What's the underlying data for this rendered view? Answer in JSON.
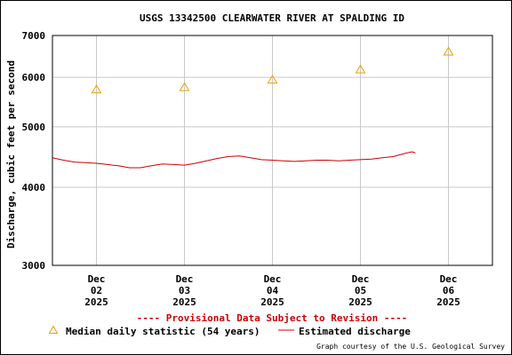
{
  "chart_data": {
    "type": "line",
    "title": "USGS 13342500 CLEARWATER RIVER AT SPALDING ID",
    "ylabel": "Discharge, cubic feet per second",
    "xlabel": "",
    "y_scale": "log",
    "ylim": [
      3000,
      7000
    ],
    "y_ticks": [
      3000,
      4000,
      5000,
      6000,
      7000
    ],
    "y_tick_labels": [
      "3000",
      "4000",
      "5000",
      "6000",
      "7000"
    ],
    "x_ticks": [
      {
        "date": "2025-12-02",
        "lines": [
          "Dec",
          "02",
          "2025"
        ]
      },
      {
        "date": "2025-12-03",
        "lines": [
          "Dec",
          "03",
          "2025"
        ]
      },
      {
        "date": "2025-12-04",
        "lines": [
          "Dec",
          "04",
          "2025"
        ]
      },
      {
        "date": "2025-12-05",
        "lines": [
          "Dec",
          "05",
          "2025"
        ]
      },
      {
        "date": "2025-12-06",
        "lines": [
          "Dec",
          "06",
          "2025"
        ]
      }
    ],
    "xlim": [
      "2025-12-01T12:00",
      "2025-12-06T12:00"
    ],
    "grid": true,
    "series": [
      {
        "name": "Median daily statistic (54 years)",
        "kind": "marker-triangle",
        "color": "#e6a000",
        "x": [
          "2025-12-02T00:00",
          "2025-12-03T00:00",
          "2025-12-04T00:00",
          "2025-12-05T00:00",
          "2025-12-06T00:00"
        ],
        "values": [
          5740,
          5790,
          5950,
          6180,
          6600
        ]
      },
      {
        "name": "Estimated discharge",
        "kind": "line",
        "color": "#cc0000",
        "x": [
          "2025-12-01T12:00",
          "2025-12-01T15:00",
          "2025-12-01T18:00",
          "2025-12-01T21:00",
          "2025-12-02T00:00",
          "2025-12-02T03:00",
          "2025-12-02T06:00",
          "2025-12-02T09:00",
          "2025-12-02T12:00",
          "2025-12-02T15:00",
          "2025-12-02T18:00",
          "2025-12-02T21:00",
          "2025-12-03T00:00",
          "2025-12-03T03:00",
          "2025-12-03T06:00",
          "2025-12-03T09:00",
          "2025-12-03T12:00",
          "2025-12-03T15:00",
          "2025-12-03T18:00",
          "2025-12-03T21:00",
          "2025-12-04T00:00",
          "2025-12-04T03:00",
          "2025-12-04T06:00",
          "2025-12-04T09:00",
          "2025-12-04T12:00",
          "2025-12-04T15:00",
          "2025-12-04T18:00",
          "2025-12-04T21:00",
          "2025-12-05T00:00",
          "2025-12-05T03:00",
          "2025-12-05T06:00",
          "2025-12-05T09:00",
          "2025-12-05T12:00",
          "2025-12-05T14:00",
          "2025-12-05T15:00"
        ],
        "values": [
          4460,
          4420,
          4390,
          4380,
          4370,
          4350,
          4330,
          4300,
          4300,
          4330,
          4360,
          4350,
          4340,
          4370,
          4410,
          4450,
          4480,
          4490,
          4460,
          4430,
          4420,
          4410,
          4400,
          4410,
          4420,
          4420,
          4410,
          4420,
          4430,
          4440,
          4460,
          4480,
          4530,
          4560,
          4540
        ]
      }
    ]
  },
  "provisional_note": "---- Provisional Data Subject to Revision ----",
  "legend": {
    "median_label": "Median daily statistic (54 years)",
    "discharge_label": "Estimated discharge"
  },
  "credit": "Graph courtesy of the U.S. Geological Survey"
}
